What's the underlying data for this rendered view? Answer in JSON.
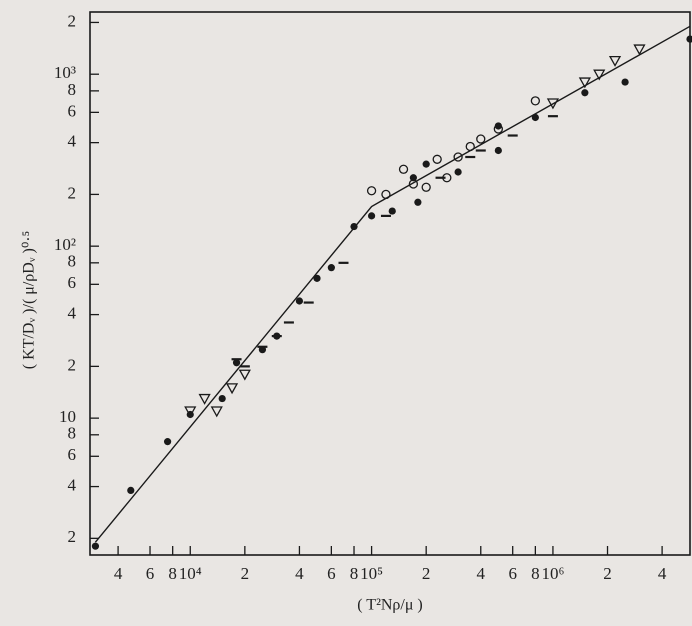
{
  "chart_data": {
    "type": "scatter",
    "x_label": "( T²Nρ/μ )",
    "y_label": "( KT/Dᵥ )/( μ/ρDᵥ )⁰·⁵",
    "log_x": true,
    "log_y": true,
    "xlim": [
      2800,
      5700000
    ],
    "ylim": [
      1.6,
      2300
    ],
    "xticks": [
      {
        "value": 4000,
        "label": "4"
      },
      {
        "value": 6000,
        "label": "6"
      },
      {
        "value": 8000,
        "label": "8"
      },
      {
        "value": 10000,
        "label": "10⁴"
      },
      {
        "value": 20000,
        "label": "2"
      },
      {
        "value": 40000,
        "label": "4"
      },
      {
        "value": 60000,
        "label": "6"
      },
      {
        "value": 80000,
        "label": "8"
      },
      {
        "value": 100000,
        "label": "10⁵"
      },
      {
        "value": 200000,
        "label": "2"
      },
      {
        "value": 400000,
        "label": "4"
      },
      {
        "value": 600000,
        "label": "6"
      },
      {
        "value": 800000,
        "label": "8"
      },
      {
        "value": 1000000,
        "label": "10⁶"
      },
      {
        "value": 2000000,
        "label": "2"
      },
      {
        "value": 4000000,
        "label": "4"
      }
    ],
    "yticks": [
      2,
      4,
      6,
      8,
      10,
      {
        "value": 20,
        "label": "2"
      },
      {
        "value": 40,
        "label": "4"
      },
      {
        "value": 60,
        "label": "6"
      },
      {
        "value": 80,
        "label": "8"
      },
      {
        "value": 100,
        "label": "10²"
      },
      {
        "value": 200,
        "label": "2"
      },
      {
        "value": 400,
        "label": "4"
      },
      {
        "value": 600,
        "label": "6"
      },
      {
        "value": 800,
        "label": "8"
      },
      {
        "value": 1000,
        "label": "10³"
      },
      {
        "value": 2000,
        "label": "2"
      }
    ],
    "series": [
      {
        "marker": "filled-circle",
        "color": "#1a1a1a",
        "x": [
          3000,
          4700,
          7500,
          10000,
          15000,
          18000,
          25000,
          30000,
          40000,
          50000,
          60000,
          80000,
          100000,
          130000,
          170000,
          180000,
          200000,
          300000,
          500000,
          500000,
          800000,
          1500000,
          2500000,
          5700000
        ],
        "values": [
          1.8,
          3.8,
          7.3,
          10.5,
          13,
          21,
          25,
          30,
          48,
          65,
          75,
          130,
          150,
          160,
          250,
          180,
          300,
          270,
          500,
          360,
          560,
          780,
          900,
          1600
        ]
      },
      {
        "marker": "open-circle",
        "color": "#1a1a1a",
        "x": [
          100000,
          120000,
          150000,
          170000,
          200000,
          230000,
          260000,
          300000,
          350000,
          400000,
          500000,
          800000
        ],
        "values": [
          210,
          200,
          280,
          230,
          220,
          320,
          250,
          330,
          380,
          420,
          480,
          700
        ]
      },
      {
        "marker": "triangle",
        "color": "#1a1a1a",
        "x": [
          10000,
          12000,
          14000,
          17000,
          20000,
          1000000,
          1500000,
          1800000,
          2200000,
          3000000
        ],
        "values": [
          11,
          13,
          11,
          15,
          18,
          680,
          900,
          1000,
          1200,
          1400
        ]
      },
      {
        "marker": "dash",
        "color": "#1a1a1a",
        "x": [
          18000,
          20000,
          25000,
          30000,
          35000,
          45000,
          70000,
          120000,
          240000,
          350000,
          400000,
          600000,
          1000000
        ],
        "values": [
          22,
          20,
          26,
          30,
          36,
          47,
          80,
          150,
          250,
          330,
          360,
          440,
          570
        ]
      },
      {
        "marker": "line",
        "color": "#1a1a1a",
        "x": [
          3000,
          100000,
          5700000
        ],
        "values": [
          1.9,
          170,
          1900
        ]
      }
    ]
  }
}
